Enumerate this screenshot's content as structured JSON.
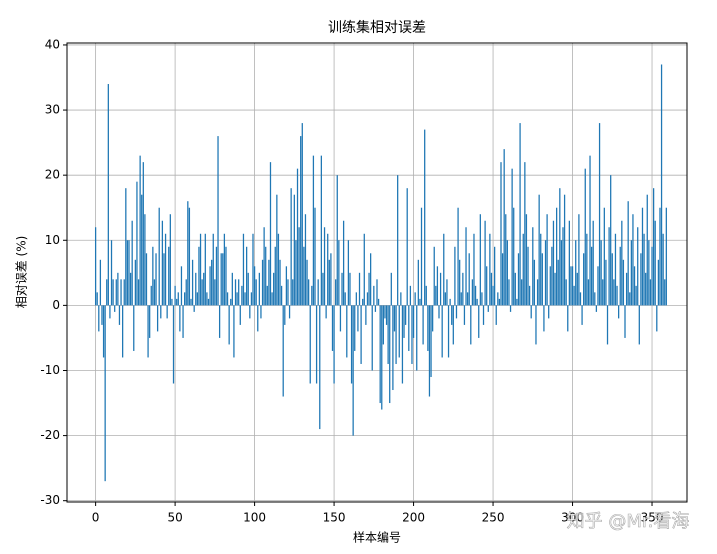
{
  "chart_data": {
    "type": "bar",
    "title": "训练集相对误差",
    "xlabel": "样本编号",
    "ylabel": "相对误差 (%)",
    "watermark": "知乎 @Mr.看海",
    "color": "#1f77b4",
    "grid": true,
    "xlim": [
      -18,
      372
    ],
    "ylim": [
      -30.2,
      40.3
    ],
    "xticks": [
      0,
      50,
      100,
      150,
      200,
      250,
      300,
      350
    ],
    "yticks": [
      -30,
      -20,
      -10,
      0,
      10,
      20,
      30,
      40
    ],
    "x": [
      0,
      1,
      2,
      3,
      4,
      5,
      6,
      7,
      8,
      9,
      10,
      11,
      12,
      13,
      14,
      15,
      16,
      17,
      18,
      19,
      20,
      21,
      22,
      23,
      24,
      25,
      26,
      27,
      28,
      29,
      30,
      31,
      32,
      33,
      34,
      35,
      36,
      37,
      38,
      39,
      40,
      41,
      42,
      43,
      44,
      45,
      46,
      47,
      48,
      49,
      50,
      51,
      52,
      53,
      54,
      55,
      56,
      57,
      58,
      59,
      60,
      61,
      62,
      63,
      64,
      65,
      66,
      67,
      68,
      69,
      70,
      71,
      72,
      73,
      74,
      75,
      76,
      77,
      78,
      79,
      80,
      81,
      82,
      83,
      84,
      85,
      86,
      87,
      88,
      89,
      90,
      91,
      92,
      93,
      94,
      95,
      96,
      97,
      98,
      99,
      100,
      101,
      102,
      103,
      104,
      105,
      106,
      107,
      108,
      109,
      110,
      111,
      112,
      113,
      114,
      115,
      116,
      117,
      118,
      119,
      120,
      121,
      122,
      123,
      124,
      125,
      126,
      127,
      128,
      129,
      130,
      131,
      132,
      133,
      134,
      135,
      136,
      137,
      138,
      139,
      140,
      141,
      142,
      143,
      144,
      145,
      146,
      147,
      148,
      149,
      150,
      151,
      152,
      153,
      154,
      155,
      156,
      157,
      158,
      159,
      160,
      161,
      162,
      163,
      164,
      165,
      166,
      167,
      168,
      169,
      170,
      171,
      172,
      173,
      174,
      175,
      176,
      177,
      178,
      179,
      180,
      181,
      182,
      183,
      184,
      185,
      186,
      187,
      188,
      189,
      190,
      191,
      192,
      193,
      194,
      195,
      196,
      197,
      198,
      199,
      200,
      201,
      202,
      203,
      204,
      205,
      206,
      207,
      208,
      209,
      210,
      211,
      212,
      213,
      214,
      215,
      216,
      217,
      218,
      219,
      220,
      221,
      222,
      223,
      224,
      225,
      226,
      227,
      228,
      229,
      230,
      231,
      232,
      233,
      234,
      235,
      236,
      237,
      238,
      239,
      240,
      241,
      242,
      243,
      244,
      245,
      246,
      247,
      248,
      249,
      250,
      251,
      252,
      253,
      254,
      255,
      256,
      257,
      258,
      259,
      260,
      261,
      262,
      263,
      264,
      265,
      266,
      267,
      268,
      269,
      270,
      271,
      272,
      273,
      274,
      275,
      276,
      277,
      278,
      279,
      280,
      281,
      282,
      283,
      284,
      285,
      286,
      287,
      288,
      289,
      290,
      291,
      292,
      293,
      294,
      295,
      296,
      297,
      298,
      299,
      300,
      301,
      302,
      303,
      304,
      305,
      306,
      307,
      308,
      309,
      310,
      311,
      312,
      313,
      314,
      315,
      316,
      317,
      318,
      319,
      320,
      321,
      322,
      323,
      324,
      325,
      326,
      327,
      328,
      329,
      330,
      331,
      332,
      333,
      334,
      335,
      336,
      337,
      338,
      339,
      340,
      341,
      342,
      343,
      344,
      345,
      346,
      347,
      348,
      349,
      350,
      351,
      352,
      353,
      354,
      355,
      356,
      357,
      358,
      359
    ],
    "values": [
      12,
      2,
      -4,
      7,
      -3,
      -8,
      -27,
      4,
      34,
      -2,
      10,
      4,
      -1,
      4,
      5,
      -3,
      4,
      -8,
      4,
      18,
      10,
      10,
      5,
      13,
      -7,
      7,
      19,
      4,
      23,
      17,
      22,
      14,
      8,
      -8,
      -5,
      3,
      9,
      4,
      8,
      -4,
      15,
      -2,
      13,
      8,
      11,
      -2,
      9,
      14,
      1,
      -12,
      3,
      1,
      2,
      -4,
      6,
      -5,
      2,
      4,
      16,
      15,
      1,
      7,
      -1,
      5,
      2,
      9,
      11,
      4,
      5,
      11,
      2,
      1,
      6,
      7,
      11,
      4,
      9,
      26,
      -5,
      8,
      8,
      11,
      9,
      2,
      -6,
      1,
      5,
      -8,
      4,
      2,
      4,
      -3,
      3,
      11,
      2,
      9,
      5,
      -2,
      2,
      11,
      6,
      4,
      -4,
      5,
      -2,
      7,
      12,
      9,
      3,
      7,
      22,
      2,
      5,
      9,
      17,
      11,
      7,
      3,
      -14,
      -3,
      6,
      4,
      -2,
      18,
      4,
      17,
      10,
      21,
      12,
      26,
      28,
      9,
      14,
      7,
      4,
      -12,
      3,
      23,
      15,
      -12,
      4,
      -19,
      23,
      5,
      12,
      -2,
      11,
      7,
      8,
      -7,
      -12,
      4,
      20,
      10,
      -4,
      5,
      13,
      2,
      -8,
      10,
      5,
      -12,
      -20,
      -7,
      2,
      -4,
      5,
      -9,
      1,
      11,
      -3,
      2,
      5,
      8,
      -10,
      3,
      -1,
      4,
      1,
      -15,
      -16,
      -6,
      -2,
      -3,
      -9,
      -15,
      5,
      -13,
      -4,
      -9,
      20,
      -8,
      2,
      -12,
      -5,
      -3,
      18,
      -7,
      3,
      -9,
      -5,
      2,
      -10,
      7,
      1,
      15,
      -6,
      27,
      3,
      -7,
      -14,
      -11,
      -4,
      9,
      3,
      6,
      -2,
      5,
      -8,
      11,
      2,
      4,
      -8,
      1,
      -3,
      -6,
      9,
      -2,
      15,
      7,
      2,
      5,
      -3,
      12,
      2,
      8,
      -6,
      4,
      11,
      3,
      1,
      -5,
      14,
      2,
      -3,
      13,
      6,
      -1,
      11,
      5,
      3,
      9,
      -3,
      2,
      1,
      22,
      8,
      24,
      14,
      10,
      4,
      -1,
      21,
      15,
      5,
      1,
      8,
      28,
      4,
      11,
      22,
      14,
      9,
      3,
      -2,
      12,
      7,
      -6,
      4,
      17,
      11,
      8,
      -4,
      10,
      14,
      -2,
      6,
      9,
      13,
      5,
      15,
      7,
      18,
      10,
      12,
      17,
      4,
      -4,
      13,
      6,
      6,
      3,
      10,
      5,
      14,
      2,
      -3,
      8,
      21,
      11,
      4,
      23,
      9,
      13,
      2,
      -1,
      6,
      28,
      10,
      4,
      15,
      7,
      -6,
      12,
      20,
      8,
      4,
      11,
      3,
      -2,
      9,
      13,
      7,
      -5,
      5,
      16,
      2,
      10,
      14,
      6,
      3,
      12,
      -6,
      8,
      15,
      11,
      5,
      17,
      10,
      4,
      9,
      18,
      13,
      -4,
      7,
      15,
      37,
      11,
      4,
      15
    ]
  }
}
